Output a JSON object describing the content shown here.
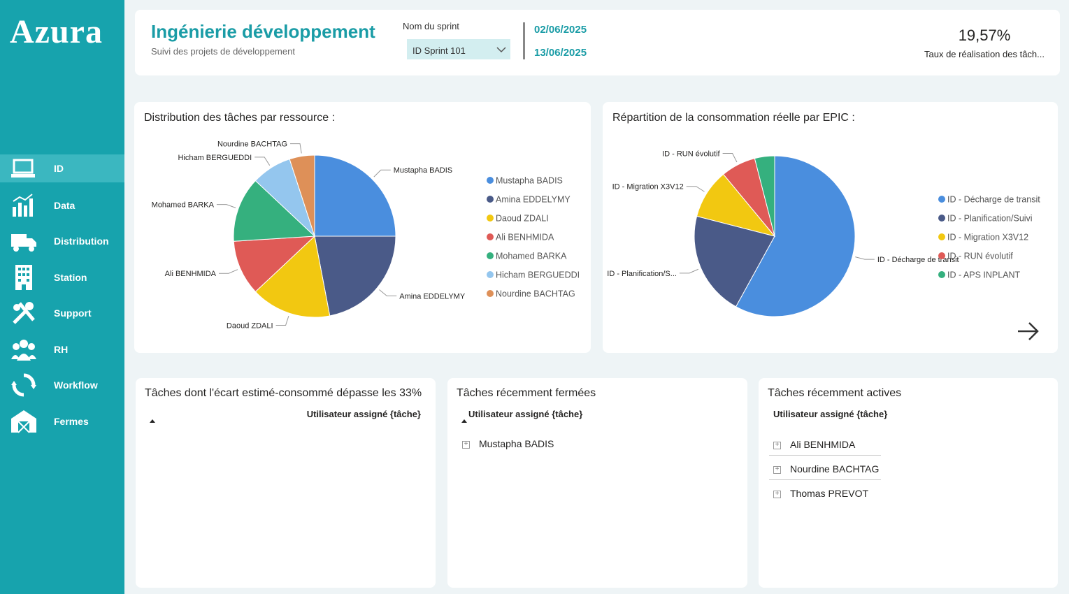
{
  "sidebar": {
    "logo": "Azura",
    "menu": [
      "ID",
      "Data",
      "Distribution",
      "Station",
      "Support",
      "RH",
      "Workflow",
      "Fermes"
    ]
  },
  "header": {
    "title": "Ingénierie développement",
    "subtitle": "Suivi des projets de développement",
    "sprint_label": "Nom du sprint",
    "sprint_value": "ID Sprint 101",
    "start_date": "02/06/2025",
    "end_date": "13/06/2025",
    "kpi_value": "19,57%",
    "kpi_label": "Taux de réalisation des tâch..."
  },
  "charts": [
    {
      "type": "pie",
      "title": "Distribution des tâches par ressource :",
      "categories": [
        "Mustapha BADIS",
        "Amina EDDELYMY",
        "Daoud ZDALI",
        "Ali BENHMIDA",
        "Mohamed BARKA",
        "Hicham BERGUEDDI",
        "Nourdine BACHTAG"
      ],
      "values": [
        25,
        22,
        16,
        11,
        13,
        8,
        5
      ],
      "colors": [
        "#4a8ede",
        "#4a5a88",
        "#f2c811",
        "#df5a56",
        "#35b07e",
        "#94c6ee",
        "#de9058"
      ]
    },
    {
      "type": "pie",
      "title": "Répartition de la consommation réelle par EPIC :",
      "categories": [
        "ID - Décharge de transit",
        "ID - Planification/Suivi",
        "ID - Migration X3V12",
        "ID - RUN évolutif",
        "ID - APS INPLANT"
      ],
      "data_labels": [
        "ID - Décharge de transit",
        "ID - Planification/S...",
        "ID - Migration X3V12",
        "ID - RUN évolutif",
        null
      ],
      "values": [
        58,
        21,
        10,
        7,
        4
      ],
      "colors": [
        "#4a8ede",
        "#4a5a88",
        "#f2c811",
        "#df5a56",
        "#35b07e"
      ]
    }
  ],
  "tables": [
    {
      "title": "Tâches dont l'écart estimé-consommé dépasse les 33%",
      "column": "Utilisateur assigné {tâche}",
      "rows": []
    },
    {
      "title": "Tâches récemment fermées",
      "column": "Utilisateur assigné {tâche}",
      "rows": [
        "Mustapha BADIS"
      ]
    },
    {
      "title": "Tâches récemment actives",
      "column": "Utilisateur assigné {tâche}",
      "rows": [
        "Ali BENHMIDA",
        "Nourdine BACHTAG",
        "Thomas PREVOT"
      ]
    }
  ]
}
